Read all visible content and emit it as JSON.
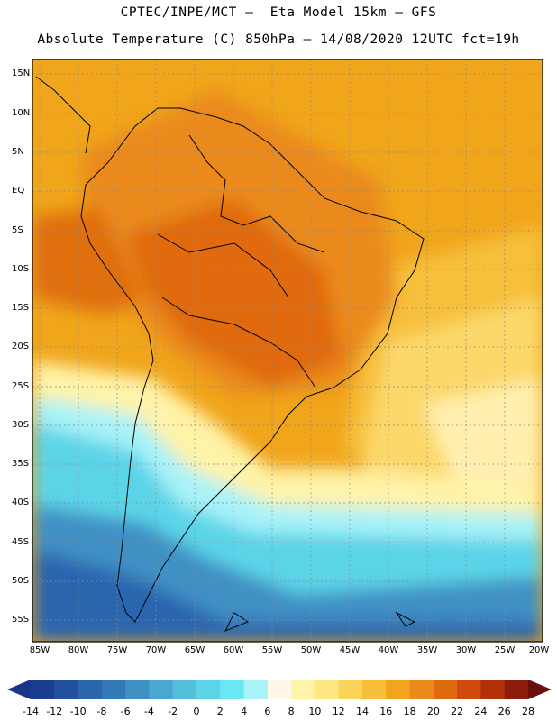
{
  "title_line1": "CPTEC/INPE/MCT —  Eta Model 15km — GFS",
  "title_line2": "Absolute Temperature (C) 850hPa — 14/08/2020 12UTC fct=19h",
  "lat_labels": [
    "15N",
    "10N",
    "5N",
    "EQ",
    "5S",
    "10S",
    "15S",
    "20S",
    "25S",
    "30S",
    "35S",
    "40S",
    "45S",
    "50S",
    "55S"
  ],
  "lon_labels": [
    "85W",
    "80W",
    "75W",
    "70W",
    "65W",
    "60W",
    "55W",
    "50W",
    "45W",
    "40W",
    "35W",
    "30W",
    "25W",
    "20W"
  ],
  "colorbar": {
    "labels": [
      "-14",
      "-12",
      "-10",
      "-8",
      "-6",
      "-4",
      "-2",
      "0",
      "2",
      "4",
      "6",
      "8",
      "10",
      "12",
      "14",
      "16",
      "18",
      "20",
      "22",
      "24",
      "26",
      "28"
    ],
    "colors": [
      "#1b3d8f",
      "#22509f",
      "#2a65ae",
      "#3379b8",
      "#3f90c4",
      "#4aa7cf",
      "#52bedc",
      "#5cd4e8",
      "#6ae8f2",
      "#a8f2f8",
      "#fff8e6",
      "#fff3a8",
      "#fee680",
      "#fcd35a",
      "#f8be3a",
      "#f2a41c",
      "#ea8a1a",
      "#e06a10",
      "#cf4a0c",
      "#b2300a",
      "#8c1c0a"
    ],
    "left_arrow_color": "#1a3488",
    "right_arrow_color": "#6a0f10"
  }
}
